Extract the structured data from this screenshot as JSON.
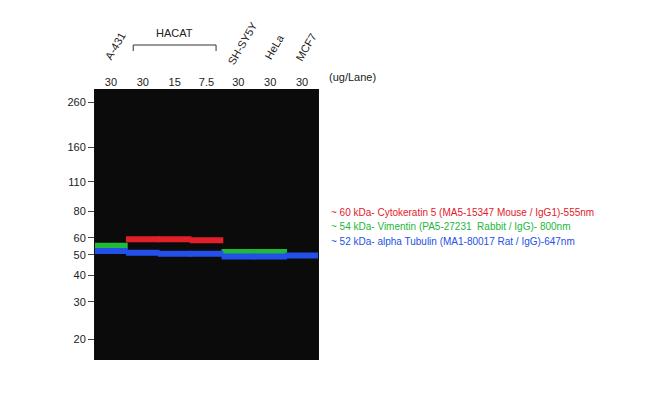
{
  "chart_data": {
    "type": "scatter",
    "marker": "line-ew",
    "log": "y",
    "grid": false,
    "categories": [
      "30",
      "30",
      "15",
      "7.5",
      "30",
      "30",
      "30"
    ],
    "unit_label": "(ug/Lane)",
    "groups": [
      {
        "label": "A-431",
        "lanes": [
          0,
          0
        ]
      },
      {
        "label": "HACAT",
        "lanes": [
          1,
          3
        ]
      },
      {
        "label": "SH-SY5Y",
        "lanes": [
          4,
          4
        ]
      },
      {
        "label": "HeLa",
        "lanes": [
          5,
          5
        ]
      },
      {
        "label": "MCF7",
        "lanes": [
          6,
          6
        ]
      }
    ],
    "ylim": [
      16,
      300
    ],
    "yticks": [
      260,
      160,
      110,
      80,
      60,
      50,
      40,
      30,
      20
    ],
    "series": [
      {
        "name": "~ 60 kDa- Cytokeratin 5 (MA5-15347 Mouse / IgG1)-555nm",
        "color": "#e3202a",
        "values": [
          null,
          59,
          59,
          58.5,
          null,
          null,
          null
        ]
      },
      {
        "name": "~ 54 kDa- Vimentin (PA5-27231  Rabbit / IgG)- 800nm",
        "color": "#22b83a",
        "values": [
          55,
          null,
          null,
          null,
          51.5,
          51.5,
          null
        ]
      },
      {
        "name": "~ 52 kDa- alpha Tubulin (MA1-80017 Rat / IgG)-647nm",
        "color": "#2350e8",
        "values": [
          52,
          51,
          50.5,
          50.5,
          49,
          49,
          49.5
        ]
      }
    ]
  }
}
